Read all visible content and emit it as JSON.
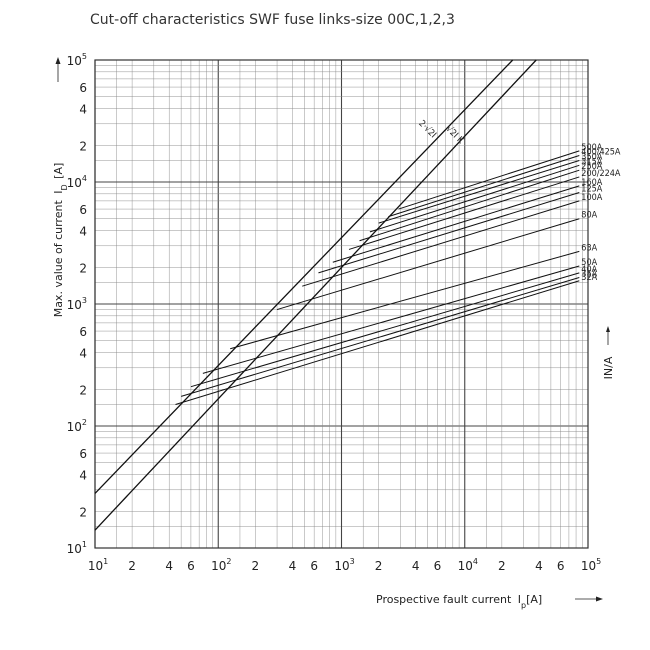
{
  "chart_data": {
    "type": "line",
    "title": "Cut-off characteristics SWF fuse links-size 00C,1,2,3",
    "xlabel": "Prospective fault current",
    "xlabel_symbol": "I",
    "xlabel_sub": "p",
    "xlabel_unit": "[A]",
    "ylabel": "Max. value of current",
    "ylabel_symbol": "I",
    "ylabel_sub": "D",
    "ylabel_unit": "[A]",
    "side_label": "IN/A",
    "x_scale": "log",
    "y_scale": "log",
    "xlim": [
      10,
      100000
    ],
    "ylim": [
      10,
      100000
    ],
    "grid": true,
    "x_tick_labels": [
      {
        "v": 10,
        "base": "10",
        "exp": "1"
      },
      {
        "v": 20,
        "base": "2",
        "exp": ""
      },
      {
        "v": 40,
        "base": "4",
        "exp": ""
      },
      {
        "v": 60,
        "base": "6",
        "exp": ""
      },
      {
        "v": 100,
        "base": "10",
        "exp": "2"
      },
      {
        "v": 200,
        "base": "2",
        "exp": ""
      },
      {
        "v": 400,
        "base": "4",
        "exp": ""
      },
      {
        "v": 600,
        "base": "6",
        "exp": ""
      },
      {
        "v": 1000,
        "base": "10",
        "exp": "3"
      },
      {
        "v": 2000,
        "base": "2",
        "exp": ""
      },
      {
        "v": 4000,
        "base": "4",
        "exp": ""
      },
      {
        "v": 6000,
        "base": "6",
        "exp": ""
      },
      {
        "v": 10000,
        "base": "10",
        "exp": "4"
      },
      {
        "v": 20000,
        "base": "2",
        "exp": ""
      },
      {
        "v": 40000,
        "base": "4",
        "exp": ""
      },
      {
        "v": 60000,
        "base": "6",
        "exp": ""
      },
      {
        "v": 100000,
        "base": "10",
        "exp": "5"
      }
    ],
    "y_tick_labels": [
      {
        "v": 10,
        "base": "10",
        "exp": "1"
      },
      {
        "v": 20,
        "base": "2",
        "exp": ""
      },
      {
        "v": 40,
        "base": "4",
        "exp": ""
      },
      {
        "v": 60,
        "base": "6",
        "exp": ""
      },
      {
        "v": 100,
        "base": "10",
        "exp": "2"
      },
      {
        "v": 200,
        "base": "2",
        "exp": ""
      },
      {
        "v": 400,
        "base": "4",
        "exp": ""
      },
      {
        "v": 600,
        "base": "6",
        "exp": ""
      },
      {
        "v": 1000,
        "base": "10",
        "exp": "3"
      },
      {
        "v": 2000,
        "base": "2",
        "exp": ""
      },
      {
        "v": 4000,
        "base": "4",
        "exp": ""
      },
      {
        "v": 6000,
        "base": "6",
        "exp": ""
      },
      {
        "v": 10000,
        "base": "10",
        "exp": "4"
      },
      {
        "v": 20000,
        "base": "2",
        "exp": ""
      },
      {
        "v": 40000,
        "base": "4",
        "exp": ""
      },
      {
        "v": 60000,
        "base": "6",
        "exp": ""
      },
      {
        "v": 100000,
        "base": "10",
        "exp": "5"
      }
    ],
    "reference_lines": [
      {
        "name": "2·√2I",
        "x": [
          10,
          24500
        ],
        "y": [
          28,
          100000
        ]
      },
      {
        "name": "√2I K",
        "x": [
          10,
          38000
        ],
        "y": [
          14,
          100000
        ]
      }
    ],
    "series": [
      {
        "name": "500A",
        "x": [
          2900,
          85000
        ],
        "y": [
          6000,
          18000
        ]
      },
      {
        "name": "400/425A",
        "x": [
          2400,
          85000
        ],
        "y": [
          5200,
          16500
        ]
      },
      {
        "name": "350A",
        "x": [
          2000,
          85000
        ],
        "y": [
          4600,
          15000
        ]
      },
      {
        "name": "315A",
        "x": [
          1700,
          85000
        ],
        "y": [
          3900,
          13700
        ]
      },
      {
        "name": "250A",
        "x": [
          1400,
          85000
        ],
        "y": [
          3300,
          12500
        ]
      },
      {
        "name": "200/224A",
        "x": [
          1150,
          85000
        ],
        "y": [
          2800,
          11000
        ]
      },
      {
        "name": "160A",
        "x": [
          850,
          85000
        ],
        "y": [
          2200,
          9300
        ]
      },
      {
        "name": "125A",
        "x": [
          650,
          85000
        ],
        "y": [
          1800,
          8200
        ]
      },
      {
        "name": "100A",
        "x": [
          480,
          85000
        ],
        "y": [
          1400,
          7000
        ]
      },
      {
        "name": "80A",
        "x": [
          300,
          85000
        ],
        "y": [
          900,
          5000
        ]
      },
      {
        "name": "63A",
        "x": [
          125,
          85000
        ],
        "y": [
          430,
          2700
        ]
      },
      {
        "name": "50A",
        "x": [
          75,
          85000
        ],
        "y": [
          270,
          2050
        ]
      },
      {
        "name": "40A",
        "x": [
          60,
          85000
        ],
        "y": [
          210,
          1800
        ]
      },
      {
        "name": "35A",
        "x": [
          50,
          85000
        ],
        "y": [
          175,
          1650
        ]
      },
      {
        "name": "32A",
        "x": [
          45,
          85000
        ],
        "y": [
          150,
          1550
        ]
      }
    ]
  }
}
